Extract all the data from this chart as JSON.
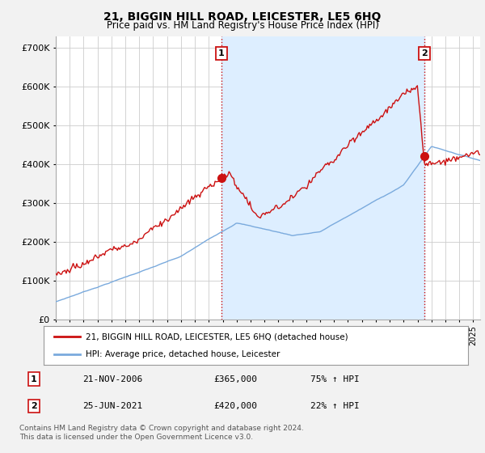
{
  "title": "21, BIGGIN HILL ROAD, LEICESTER, LE5 6HQ",
  "subtitle": "Price paid vs. HM Land Registry's House Price Index (HPI)",
  "ylabel_ticks": [
    "£0",
    "£100K",
    "£200K",
    "£300K",
    "£400K",
    "£500K",
    "£600K",
    "£700K"
  ],
  "ytick_values": [
    0,
    100000,
    200000,
    300000,
    400000,
    500000,
    600000,
    700000
  ],
  "ylim": [
    0,
    730000
  ],
  "xlim_start": 1995.0,
  "xlim_end": 2025.5,
  "hpi_color": "#7aaadd",
  "price_color": "#cc1111",
  "vline_color": "#cc1111",
  "shade_color": "#ddeeff",
  "marker1_x": 2006.9,
  "marker1_y": 365000,
  "marker2_x": 2021.5,
  "marker2_y": 420000,
  "legend_label1": "21, BIGGIN HILL ROAD, LEICESTER, LE5 6HQ (detached house)",
  "legend_label2": "HPI: Average price, detached house, Leicester",
  "annotation1_label": "1",
  "annotation2_label": "2",
  "table_row1": [
    "1",
    "21-NOV-2006",
    "£365,000",
    "75% ↑ HPI"
  ],
  "table_row2": [
    "2",
    "25-JUN-2021",
    "£420,000",
    "22% ↑ HPI"
  ],
  "footer": "Contains HM Land Registry data © Crown copyright and database right 2024.\nThis data is licensed under the Open Government Licence v3.0.",
  "background_color": "#f2f2f2",
  "plot_background": "#ffffff",
  "grid_color": "#cccccc"
}
